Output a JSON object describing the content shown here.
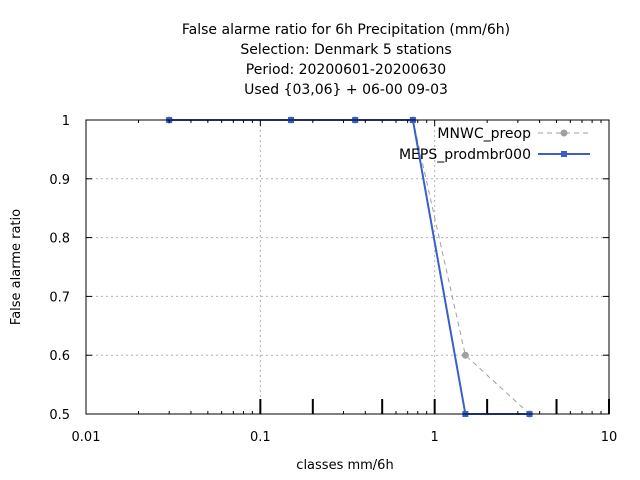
{
  "chart_data": {
    "type": "line",
    "title_lines": [
      "False alarme ratio  for 6h Precipitation (mm/6h)",
      "Selection: Denmark      5 stations",
      "Period: 20200601-20200630",
      "Used {03,06} + 06-00 09-03"
    ],
    "xlabel": "classes mm/6h",
    "ylabel": "False alarme ratio",
    "x_scale": "log",
    "xlim": [
      0.01,
      10
    ],
    "ylim": [
      0.5,
      1.0
    ],
    "x_ticks": [
      {
        "value": 0.01,
        "label": "0.01"
      },
      {
        "value": 0.1,
        "label": "0.1"
      },
      {
        "value": 1,
        "label": "1"
      },
      {
        "value": 10,
        "label": "10"
      }
    ],
    "y_ticks": [
      {
        "value": 0.5,
        "label": "0.5"
      },
      {
        "value": 0.6,
        "label": "0.6"
      },
      {
        "value": 0.7,
        "label": "0.7"
      },
      {
        "value": 0.8,
        "label": "0.8"
      },
      {
        "value": 0.9,
        "label": "0.9"
      },
      {
        "value": 1.0,
        "label": "1"
      }
    ],
    "class_marks": [
      0.1,
      0.2,
      0.5,
      1,
      2,
      5,
      10
    ],
    "grid": true,
    "legend_position": "top-right",
    "series": [
      {
        "name": "MNWC_preop",
        "color": "#a0a0a0",
        "dashed": true,
        "x": [
          0.03,
          0.15,
          0.35,
          0.75,
          1.5,
          3.5
        ],
        "y": [
          1.0,
          1.0,
          1.0,
          1.0,
          0.6,
          0.5
        ]
      },
      {
        "name": "MEPS_prodmbr000",
        "color": "#3a5fcd",
        "dashed": false,
        "x": [
          0.03,
          0.15,
          0.35,
          0.75,
          1.5,
          3.5
        ],
        "y": [
          1.0,
          1.0,
          1.0,
          1.0,
          0.5,
          0.5
        ]
      }
    ]
  }
}
